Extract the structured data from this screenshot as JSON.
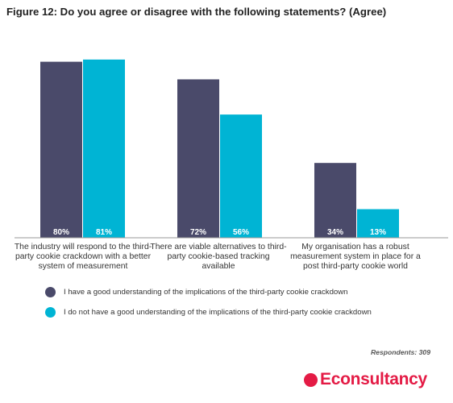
{
  "title": "Figure 12: Do you agree or disagree with the following statements? (Agree)",
  "respondents": "Respondents: 309",
  "logo_text": "Econsultancy",
  "chart_data": {
    "type": "bar",
    "categories": [
      "The industry will respond to the third-party cookie crackdown with a better system of measurement",
      "There are viable alternatives to third-party cookie-based tracking available",
      "My organisation has a robust measurement system in place for a post third-party cookie world"
    ],
    "series": [
      {
        "name": "I have a good understanding of the implications of the third-party cookie crackdown",
        "color": "#4a4a6a",
        "values": [
          80,
          72,
          34
        ],
        "labels": [
          "80%",
          "72%",
          "34%"
        ]
      },
      {
        "name": "I do not have a good understanding of the implications of the third-party cookie crackdown",
        "color": "#00b4d4",
        "values": [
          81,
          56,
          13
        ],
        "labels": [
          "81%",
          "56%",
          "13%"
        ]
      }
    ],
    "ylim": [
      0,
      100
    ],
    "grid": false,
    "legend_position": "bottom"
  }
}
